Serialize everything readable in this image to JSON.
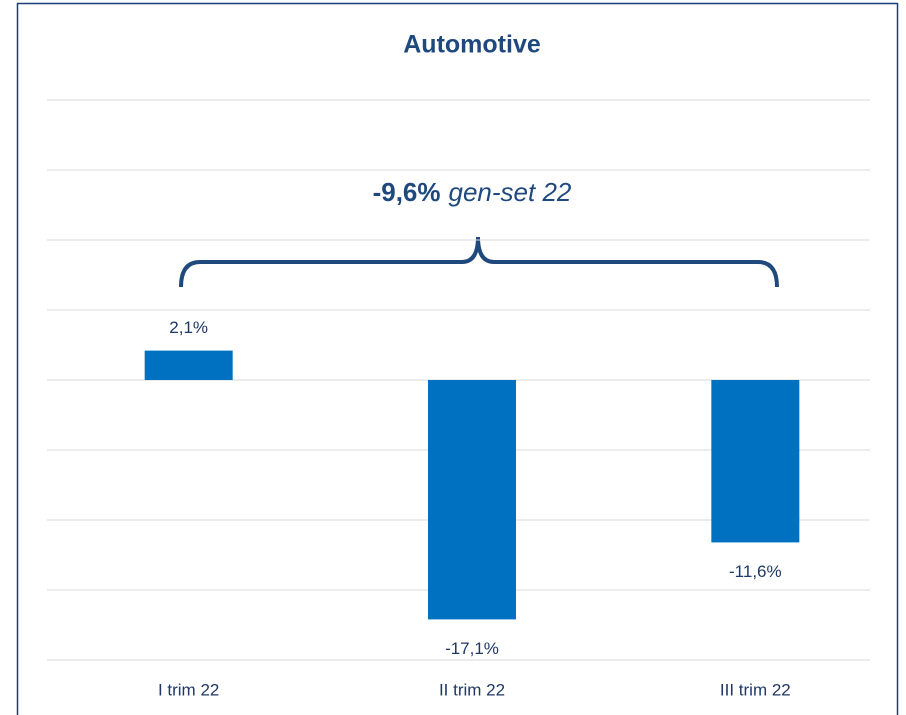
{
  "chart_data": {
    "type": "bar",
    "title": "Automotive",
    "categories": [
      "I trim 22",
      "II trim 22",
      "III trim 22"
    ],
    "values": [
      2.1,
      -17.1,
      -11.6
    ],
    "value_labels": [
      "2,1%",
      "-17,1%",
      "-11,6%"
    ],
    "color": "#0070c0",
    "ylim": [
      -20,
      20
    ],
    "yticks": [
      -20,
      -15,
      -10,
      -5,
      0,
      5,
      10,
      15,
      20
    ],
    "grid": true,
    "annotation": {
      "value_label": "-9,6%",
      "text": "gen-set 22"
    }
  }
}
